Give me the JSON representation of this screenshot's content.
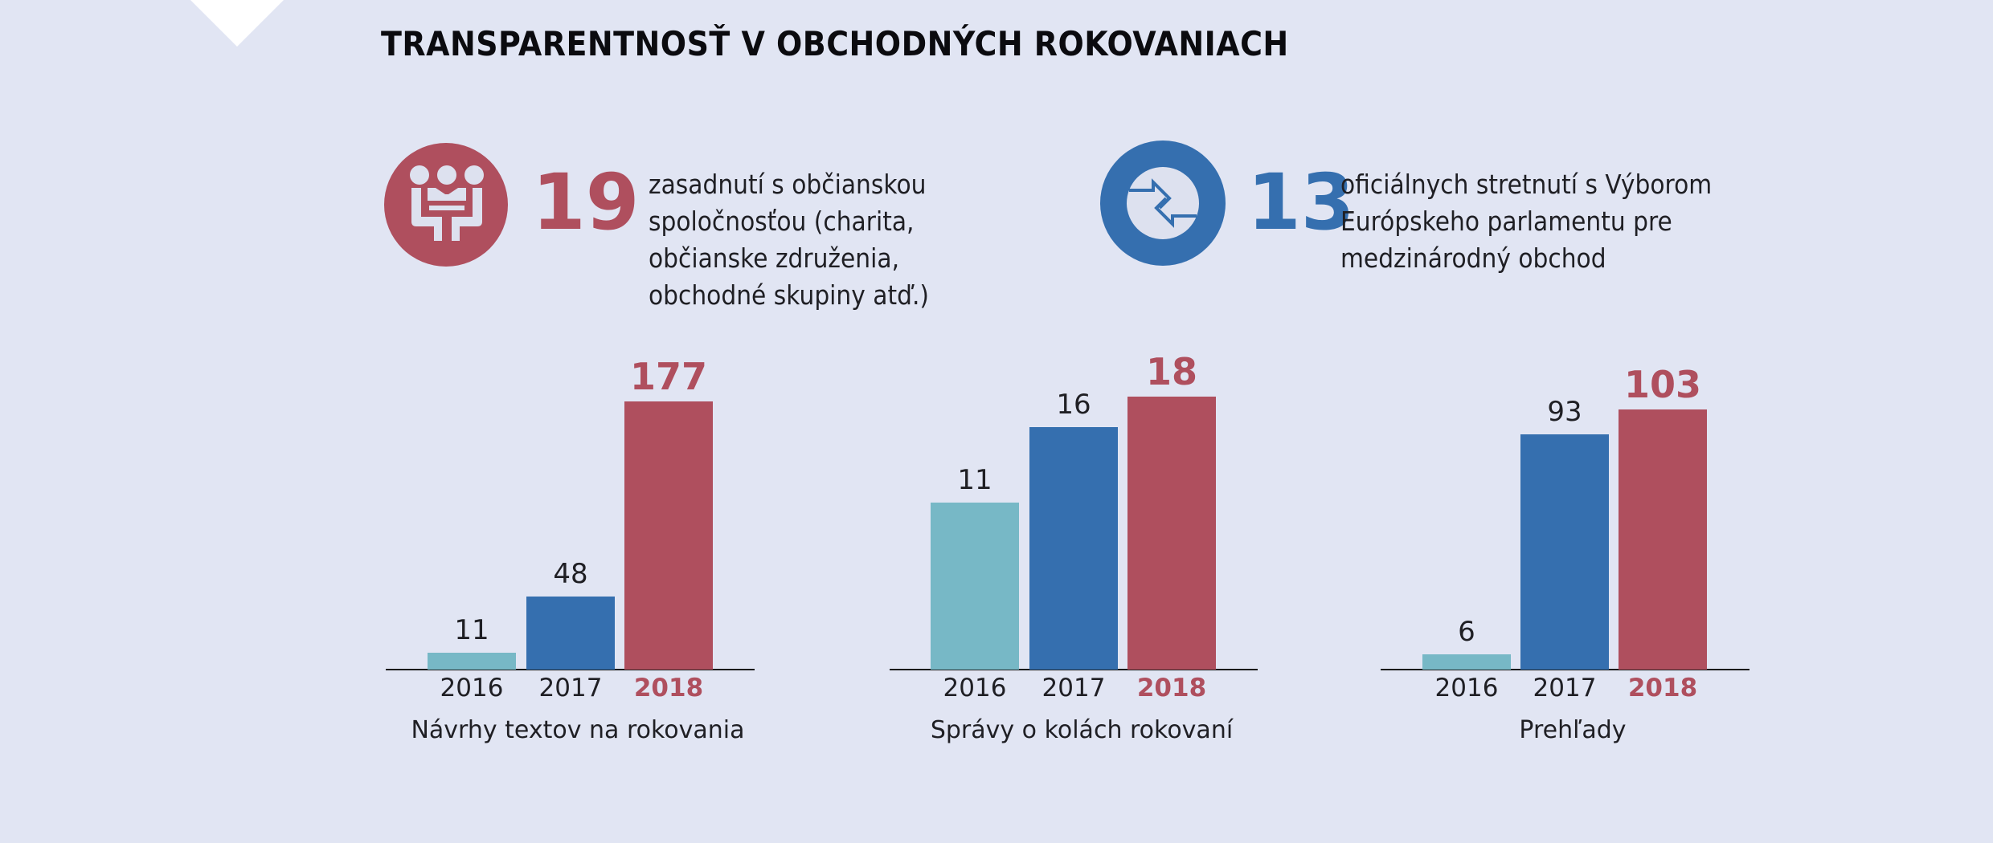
{
  "title": "TRANSPARENTNOSŤ V OBCHODNÝCH ROKOVANIACH",
  "colors": {
    "background": "#e1e5f3",
    "teal": "#77b8c6",
    "blue": "#356faf",
    "red": "#af4f5e",
    "text": "#1f1f24"
  },
  "stats": [
    {
      "icon": "people-meeting-icon",
      "number": "19",
      "color": "#af4f5e",
      "lines": [
        "zasadnutí s občianskou",
        "spoločnosťou (charita,",
        "občianske združenia,",
        "obchodné skupiny atď.)"
      ]
    },
    {
      "icon": "exchange-arrows-icon",
      "number": "13",
      "color": "#356faf",
      "lines": [
        "oficiálnych stretnutí s Výborom",
        "Európskeho parlamentu pre",
        "medzinárodný obchod"
      ]
    }
  ],
  "chart_data": [
    {
      "type": "bar",
      "title": "Návrhy textov na rokovania",
      "categories": [
        "2016",
        "2017",
        "2018"
      ],
      "values": [
        11,
        48,
        177
      ],
      "value_labels": [
        "11",
        "48",
        "177"
      ],
      "bar_colors": [
        "#77b8c6",
        "#356faf",
        "#af4f5e"
      ],
      "highlight_index": 2,
      "xlabel": "",
      "ylabel": "",
      "grid": false,
      "legend": "none"
    },
    {
      "type": "bar",
      "title": "Správy o kolách rokovaní",
      "categories": [
        "2016",
        "2017",
        "2018"
      ],
      "values": [
        11,
        16,
        18
      ],
      "value_labels": [
        "11",
        "16",
        "18"
      ],
      "bar_colors": [
        "#77b8c6",
        "#356faf",
        "#af4f5e"
      ],
      "highlight_index": 2,
      "xlabel": "",
      "ylabel": "",
      "grid": false,
      "legend": "none"
    },
    {
      "type": "bar",
      "title": "Prehľady",
      "categories": [
        "2016",
        "2017",
        "2018"
      ],
      "values": [
        6,
        93,
        103
      ],
      "value_labels": [
        "6",
        "93",
        "103"
      ],
      "bar_colors": [
        "#77b8c6",
        "#356faf",
        "#af4f5e"
      ],
      "highlight_index": 2,
      "xlabel": "",
      "ylabel": "",
      "grid": false,
      "legend": "none"
    }
  ]
}
